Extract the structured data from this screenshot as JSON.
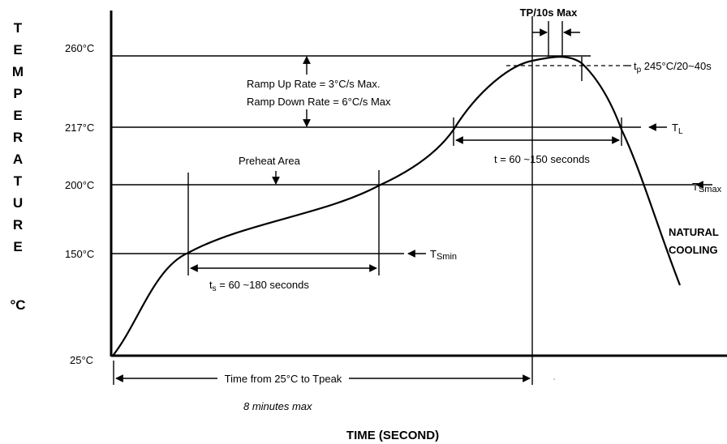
{
  "vertical_label": [
    "T",
    "E",
    "M",
    "P",
    "E",
    "R",
    "A",
    "T",
    "U",
    "R",
    "E"
  ],
  "vertical_unit": "°C",
  "x_axis_title": "TIME (SECOND)",
  "y_ticks": [
    "260°C",
    "217°C",
    "200°C",
    "150°C",
    "25°C"
  ],
  "labels": {
    "tp_max": "TP/10s Max",
    "tp_prefix": "t",
    "tp_sub": "p",
    "tp_rest": " 245°C/20~40s",
    "ramp_up": "Ramp Up Rate = 3°C/s Max.",
    "ramp_down": "Ramp Down Rate = 6°C/s Max",
    "tl_main": "T",
    "tl_sub": "L",
    "t_liquidus": "t = 60 ~150 seconds",
    "preheat": "Preheat Area",
    "tsmax_main": "T",
    "tsmax_sub": "Smax",
    "tsmin_main": "T",
    "tsmin_sub": "Smin",
    "natural_1": "NATURAL",
    "natural_2": "COOLING",
    "ts_main": "t",
    "ts_sub": "s",
    "ts_rest": " = 60 ~180 seconds",
    "time_to_peak": "Time from 25°C to Tpeak",
    "eight_min": "8 minutes max"
  }
}
